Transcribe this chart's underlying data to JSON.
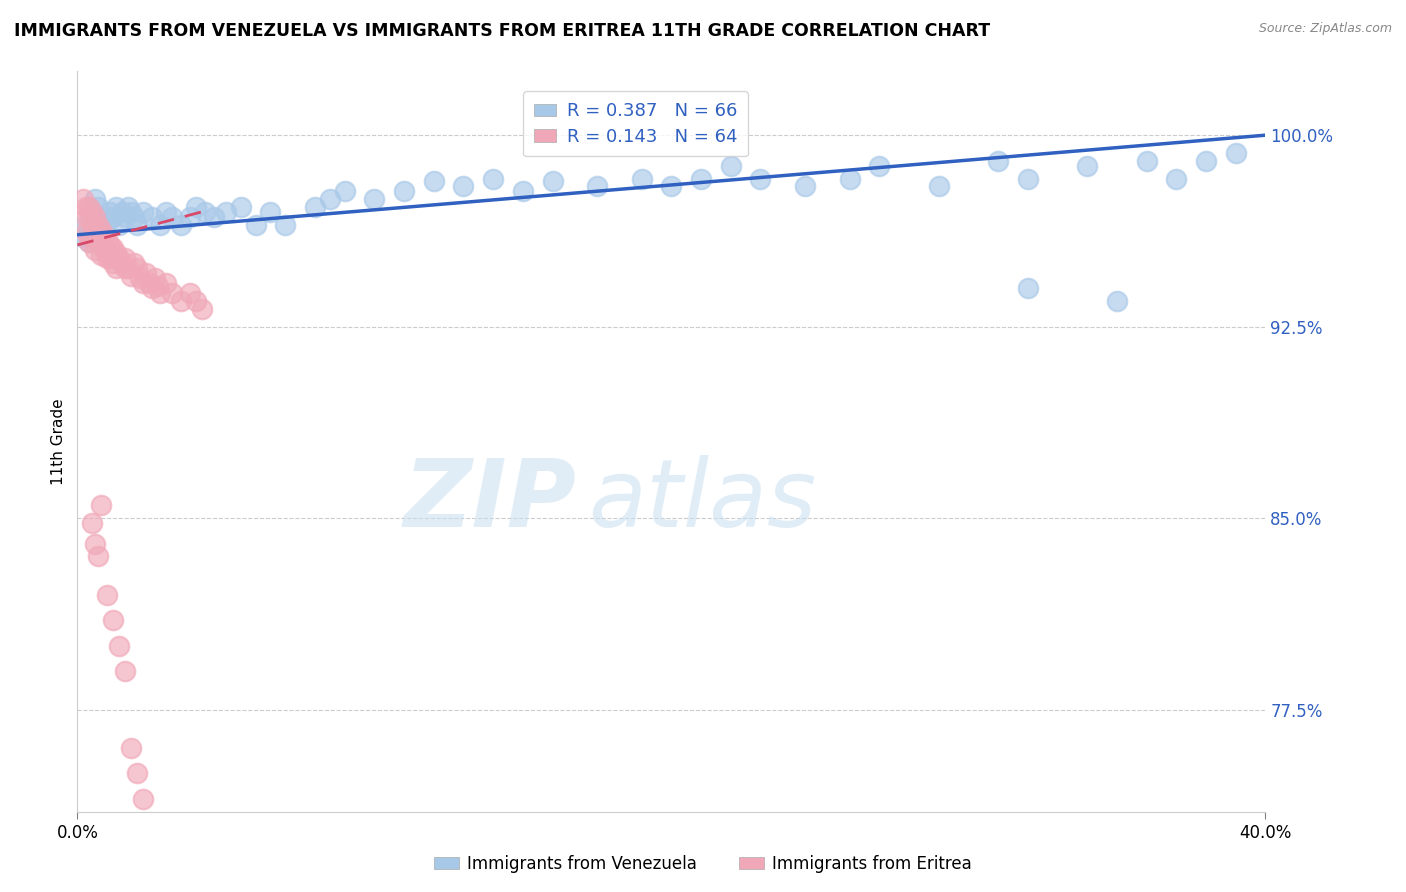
{
  "title": "IMMIGRANTS FROM VENEZUELA VS IMMIGRANTS FROM ERITREA 11TH GRADE CORRELATION CHART",
  "source": "Source: ZipAtlas.com",
  "ylabel_label": "11th Grade",
  "ytick_labels": [
    "100.0%",
    "92.5%",
    "85.0%",
    "77.5%"
  ],
  "ytick_values": [
    1.0,
    0.925,
    0.85,
    0.775
  ],
  "xlim": [
    0.0,
    0.4
  ],
  "ylim": [
    0.735,
    1.025
  ],
  "legend_r1": "0.387",
  "legend_n1": "66",
  "legend_r2": "0.143",
  "legend_n2": "64",
  "color_venezuela": "#A8C8E8",
  "color_eritrea": "#F0A8B8",
  "color_line_venezuela": "#3060C0",
  "color_line_eritrea": "#D84868",
  "watermark_zip": "ZIP",
  "watermark_atlas": "atlas",
  "background_color": "#FFFFFF",
  "venezuela_x": [
    0.002,
    0.003,
    0.004,
    0.005,
    0.005,
    0.006,
    0.006,
    0.007,
    0.007,
    0.008,
    0.009,
    0.01,
    0.011,
    0.012,
    0.013,
    0.014,
    0.015,
    0.016,
    0.017,
    0.018,
    0.019,
    0.02,
    0.022,
    0.025,
    0.028,
    0.03,
    0.032,
    0.035,
    0.038,
    0.04,
    0.043,
    0.046,
    0.05,
    0.055,
    0.06,
    0.065,
    0.07,
    0.08,
    0.085,
    0.09,
    0.1,
    0.11,
    0.12,
    0.13,
    0.14,
    0.15,
    0.16,
    0.175,
    0.19,
    0.2,
    0.21,
    0.22,
    0.23,
    0.245,
    0.26,
    0.27,
    0.29,
    0.31,
    0.32,
    0.34,
    0.36,
    0.37,
    0.38,
    0.39,
    0.32,
    0.35
  ],
  "venezuela_y": [
    0.96,
    0.965,
    0.958,
    0.962,
    0.97,
    0.968,
    0.975,
    0.972,
    0.965,
    0.968,
    0.963,
    0.966,
    0.97,
    0.968,
    0.972,
    0.965,
    0.97,
    0.968,
    0.972,
    0.97,
    0.968,
    0.965,
    0.97,
    0.968,
    0.965,
    0.97,
    0.968,
    0.965,
    0.968,
    0.972,
    0.97,
    0.968,
    0.97,
    0.972,
    0.965,
    0.97,
    0.965,
    0.972,
    0.975,
    0.978,
    0.975,
    0.978,
    0.982,
    0.98,
    0.983,
    0.978,
    0.982,
    0.98,
    0.983,
    0.98,
    0.983,
    0.988,
    0.983,
    0.98,
    0.983,
    0.988,
    0.98,
    0.99,
    0.983,
    0.988,
    0.99,
    0.983,
    0.99,
    0.993,
    0.94,
    0.935
  ],
  "eritrea_x": [
    0.002,
    0.003,
    0.003,
    0.004,
    0.004,
    0.005,
    0.005,
    0.006,
    0.006,
    0.007,
    0.007,
    0.008,
    0.008,
    0.009,
    0.009,
    0.01,
    0.01,
    0.011,
    0.011,
    0.012,
    0.012,
    0.013,
    0.013,
    0.014,
    0.015,
    0.016,
    0.016,
    0.017,
    0.018,
    0.019,
    0.02,
    0.021,
    0.022,
    0.023,
    0.024,
    0.025,
    0.026,
    0.027,
    0.028,
    0.03,
    0.032,
    0.035,
    0.038,
    0.04,
    0.042,
    0.003,
    0.004,
    0.005,
    0.006,
    0.007,
    0.008,
    0.009,
    0.01,
    0.005,
    0.006,
    0.007,
    0.008,
    0.01,
    0.012,
    0.014,
    0.016,
    0.018,
    0.02,
    0.022
  ],
  "eritrea_y": [
    0.975,
    0.972,
    0.968,
    0.972,
    0.968,
    0.97,
    0.965,
    0.968,
    0.962,
    0.965,
    0.96,
    0.963,
    0.958,
    0.961,
    0.956,
    0.959,
    0.954,
    0.957,
    0.952,
    0.956,
    0.95,
    0.954,
    0.948,
    0.952,
    0.95,
    0.948,
    0.952,
    0.948,
    0.945,
    0.95,
    0.948,
    0.944,
    0.942,
    0.946,
    0.942,
    0.94,
    0.944,
    0.941,
    0.938,
    0.942,
    0.938,
    0.935,
    0.938,
    0.935,
    0.932,
    0.962,
    0.958,
    0.96,
    0.955,
    0.958,
    0.953,
    0.956,
    0.952,
    0.848,
    0.84,
    0.835,
    0.855,
    0.82,
    0.81,
    0.8,
    0.79,
    0.76,
    0.75,
    0.74
  ],
  "ven_line_x": [
    0.0,
    0.4
  ],
  "ven_line_y": [
    0.961,
    1.0
  ],
  "eri_line_x": [
    0.0,
    0.042
  ],
  "eri_line_y": [
    0.957,
    0.97
  ]
}
